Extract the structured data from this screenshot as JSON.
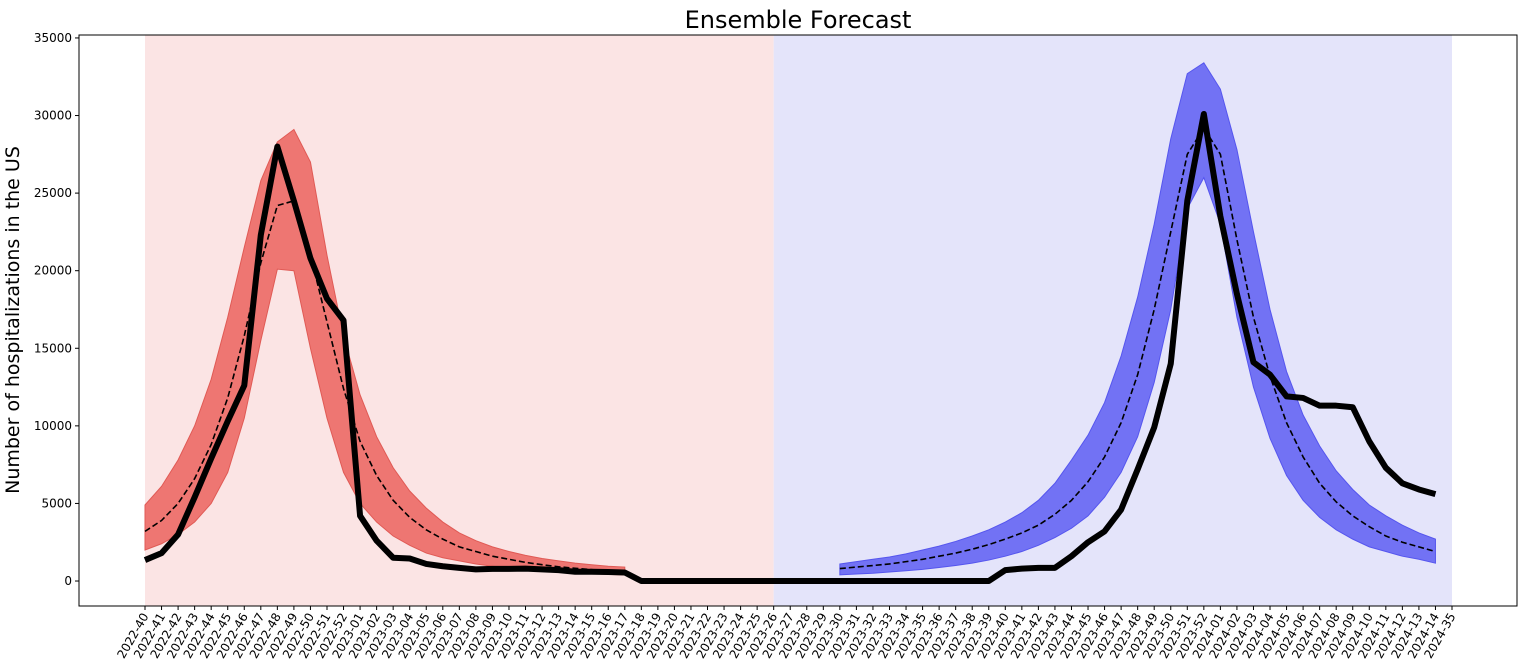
{
  "chart_data": {
    "type": "line",
    "title": "Ensemble Forecast",
    "ylabel": "Number of hospitalizations in the US",
    "categories": [
      "2022-40",
      "2022-41",
      "2022-42",
      "2022-43",
      "2022-44",
      "2022-45",
      "2022-46",
      "2022-47",
      "2022-48",
      "2022-49",
      "2022-50",
      "2022-51",
      "2022-52",
      "2023-01",
      "2023-02",
      "2023-03",
      "2023-04",
      "2023-05",
      "2023-06",
      "2023-07",
      "2023-08",
      "2023-09",
      "2023-10",
      "2023-11",
      "2023-12",
      "2023-13",
      "2023-14",
      "2023-15",
      "2023-16",
      "2023-17",
      "2023-18",
      "2023-19",
      "2023-20",
      "2023-21",
      "2023-22",
      "2023-23",
      "2023-24",
      "2023-25",
      "2023-26",
      "2023-27",
      "2023-28",
      "2023-29",
      "2023-30",
      "2023-31",
      "2023-32",
      "2023-33",
      "2023-34",
      "2023-35",
      "2023-36",
      "2023-37",
      "2023-38",
      "2023-39",
      "2023-40",
      "2023-41",
      "2023-42",
      "2023-43",
      "2023-44",
      "2023-45",
      "2023-46",
      "2023-47",
      "2023-48",
      "2023-49",
      "2023-50",
      "2023-51",
      "2023-52",
      "2024-01",
      "2024-02",
      "2024-03",
      "2024-04",
      "2024-05",
      "2024-06",
      "2024-07",
      "2024-08",
      "2024-09",
      "2024-10",
      "2024-11",
      "2024-12",
      "2024-13",
      "2024-14",
      "2024-35"
    ],
    "ylim": [
      -1610,
      35190
    ],
    "yticks": [
      0,
      5000,
      10000,
      15000,
      20000,
      25000,
      30000,
      35000
    ],
    "spans": [
      {
        "from": "2022-40",
        "to": "2023-26",
        "color": "#fbe4e4"
      },
      {
        "from": "2023-26",
        "to": "2024-35",
        "color": "#e4e4fa"
      }
    ],
    "bands": [
      {
        "color": "#ee7672",
        "edge": "#e05a55",
        "lower": [
          2000,
          2400,
          3000,
          3800,
          5000,
          7000,
          10500,
          15500,
          20100,
          20000,
          15000,
          10500,
          7000,
          5000,
          3800,
          2900,
          2300,
          1800,
          1500,
          1300,
          1100,
          950,
          850,
          750,
          650,
          600,
          530,
          480,
          430,
          390,
          null,
          null,
          null,
          null,
          null,
          null,
          null,
          null,
          null,
          null,
          null,
          null,
          null,
          null,
          null,
          null,
          null,
          null,
          null,
          null,
          null,
          null,
          null,
          null,
          null,
          null,
          null,
          null,
          null,
          null,
          null,
          null,
          null,
          null,
          null,
          null,
          null,
          null,
          null,
          null,
          null,
          null,
          null,
          null,
          null,
          null,
          null,
          null,
          null,
          null
        ],
        "upper": [
          4900,
          6100,
          7800,
          10000,
          13000,
          17000,
          21500,
          25800,
          28300,
          29100,
          27000,
          21000,
          15800,
          12000,
          9300,
          7300,
          5800,
          4700,
          3800,
          3100,
          2600,
          2200,
          1900,
          1650,
          1450,
          1300,
          1150,
          1050,
          950,
          900,
          null,
          null,
          null,
          null,
          null,
          null,
          null,
          null,
          null,
          null,
          null,
          null,
          null,
          null,
          null,
          null,
          null,
          null,
          null,
          null,
          null,
          null,
          null,
          null,
          null,
          null,
          null,
          null,
          null,
          null,
          null,
          null,
          null,
          null,
          null,
          null,
          null,
          null,
          null,
          null,
          null,
          null,
          null,
          null,
          null,
          null,
          null,
          null,
          null,
          null
        ]
      },
      {
        "color": "#7272f4",
        "edge": "#5555ee",
        "lower": [
          null,
          null,
          null,
          null,
          null,
          null,
          null,
          null,
          null,
          null,
          null,
          null,
          null,
          null,
          null,
          null,
          null,
          null,
          null,
          null,
          null,
          null,
          null,
          null,
          null,
          null,
          null,
          null,
          null,
          null,
          null,
          null,
          null,
          null,
          null,
          null,
          null,
          null,
          null,
          null,
          null,
          null,
          400,
          450,
          500,
          580,
          660,
          750,
          870,
          1000,
          1150,
          1350,
          1600,
          1900,
          2300,
          2800,
          3400,
          4200,
          5400,
          7000,
          9300,
          12800,
          17500,
          24000,
          26000,
          23000,
          17000,
          12500,
          9200,
          6800,
          5200,
          4100,
          3300,
          2700,
          2200,
          1900,
          1600,
          1400,
          1150,
          null
        ],
        "upper": [
          null,
          null,
          null,
          null,
          null,
          null,
          null,
          null,
          null,
          null,
          null,
          null,
          null,
          null,
          null,
          null,
          null,
          null,
          null,
          null,
          null,
          null,
          null,
          null,
          null,
          null,
          null,
          null,
          null,
          null,
          null,
          null,
          null,
          null,
          null,
          null,
          null,
          null,
          null,
          null,
          null,
          null,
          1100,
          1250,
          1400,
          1550,
          1750,
          2000,
          2250,
          2550,
          2900,
          3300,
          3800,
          4400,
          5200,
          6300,
          7800,
          9400,
          11500,
          14500,
          18300,
          23000,
          28500,
          32700,
          33400,
          31700,
          27800,
          22500,
          17500,
          13500,
          10700,
          8700,
          7100,
          5900,
          4900,
          4200,
          3600,
          3100,
          2700,
          null
        ]
      }
    ],
    "series": [
      {
        "color": "#000000",
        "style": "dashed",
        "values": [
          3200,
          3900,
          5000,
          6600,
          8800,
          11800,
          15800,
          20500,
          24200,
          24500,
          21000,
          16700,
          12400,
          9000,
          6800,
          5200,
          4100,
          3300,
          2700,
          2200,
          1900,
          1600,
          1400,
          1200,
          1050,
          920,
          820,
          730,
          650,
          580,
          null,
          null,
          null,
          null,
          null,
          null,
          null,
          null,
          null,
          null,
          null,
          null,
          800,
          900,
          1000,
          1100,
          1250,
          1400,
          1600,
          1800,
          2050,
          2350,
          2700,
          3100,
          3600,
          4300,
          5200,
          6400,
          8000,
          10200,
          13300,
          17500,
          22500,
          27500,
          29200,
          27500,
          22000,
          17000,
          13200,
          10200,
          8000,
          6300,
          5100,
          4200,
          3500,
          2900,
          2500,
          2200,
          1900,
          null
        ]
      },
      {
        "color": "#000000",
        "style": "solid",
        "values": [
          1350,
          1800,
          3000,
          5400,
          7900,
          10300,
          12600,
          22300,
          28000,
          24500,
          20800,
          18200,
          16800,
          4200,
          2600,
          1500,
          1450,
          1100,
          950,
          850,
          750,
          780,
          780,
          800,
          750,
          700,
          600,
          600,
          580,
          550,
          0,
          0,
          0,
          0,
          0,
          0,
          0,
          0,
          0,
          0,
          0,
          0,
          0,
          0,
          0,
          0,
          0,
          0,
          0,
          0,
          0,
          0,
          700,
          800,
          850,
          850,
          1600,
          2500,
          3200,
          4600,
          7200,
          9900,
          14000,
          24500,
          30100,
          23500,
          18500,
          14100,
          13300,
          11900,
          11800,
          11300,
          11300,
          11200,
          9000,
          7300,
          6300,
          5900,
          5600,
          null
        ]
      }
    ]
  }
}
